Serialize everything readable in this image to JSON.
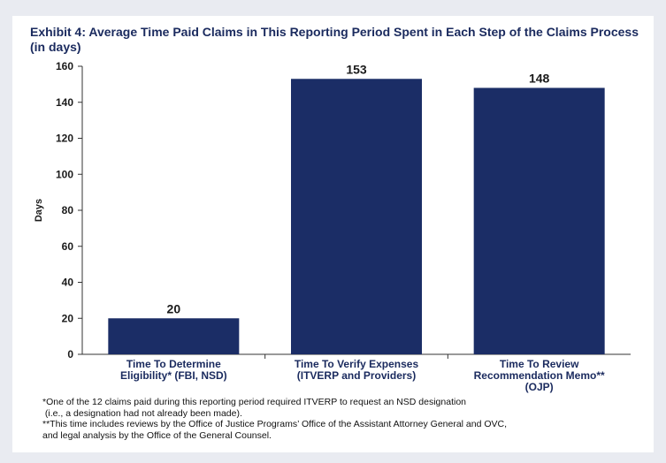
{
  "chart_data": {
    "type": "bar",
    "title": "Exhibit 4: Average Time Paid Claims in This Reporting Period Spent in Each Step of the Claims Process (in days)",
    "ylabel": "Days",
    "xlabel": "",
    "ylim": [
      0,
      160
    ],
    "yticks": [
      0,
      20,
      40,
      60,
      80,
      100,
      120,
      140,
      160
    ],
    "categories": [
      [
        "Time To Determine",
        "Eligibility* (FBI, NSD)"
      ],
      [
        "Time To Verify Expenses",
        "(ITVERP and Providers)"
      ],
      [
        "Time To Review",
        "Recommendation Memo**",
        "(OJP)"
      ]
    ],
    "values": [
      20,
      153,
      148
    ],
    "bar_color": "#1b2d66",
    "grid": false
  },
  "footnotes": [
    "*One of the 12 claims paid during this reporting period required ITVERP to request an NSD designation",
    " (i.e., a designation had not already been made).",
    "**This time includes reviews by the Office of Justice Programs’ Office of the Assistant Attorney General and OVC,",
    "and legal analysis by the Office of the General Counsel."
  ]
}
